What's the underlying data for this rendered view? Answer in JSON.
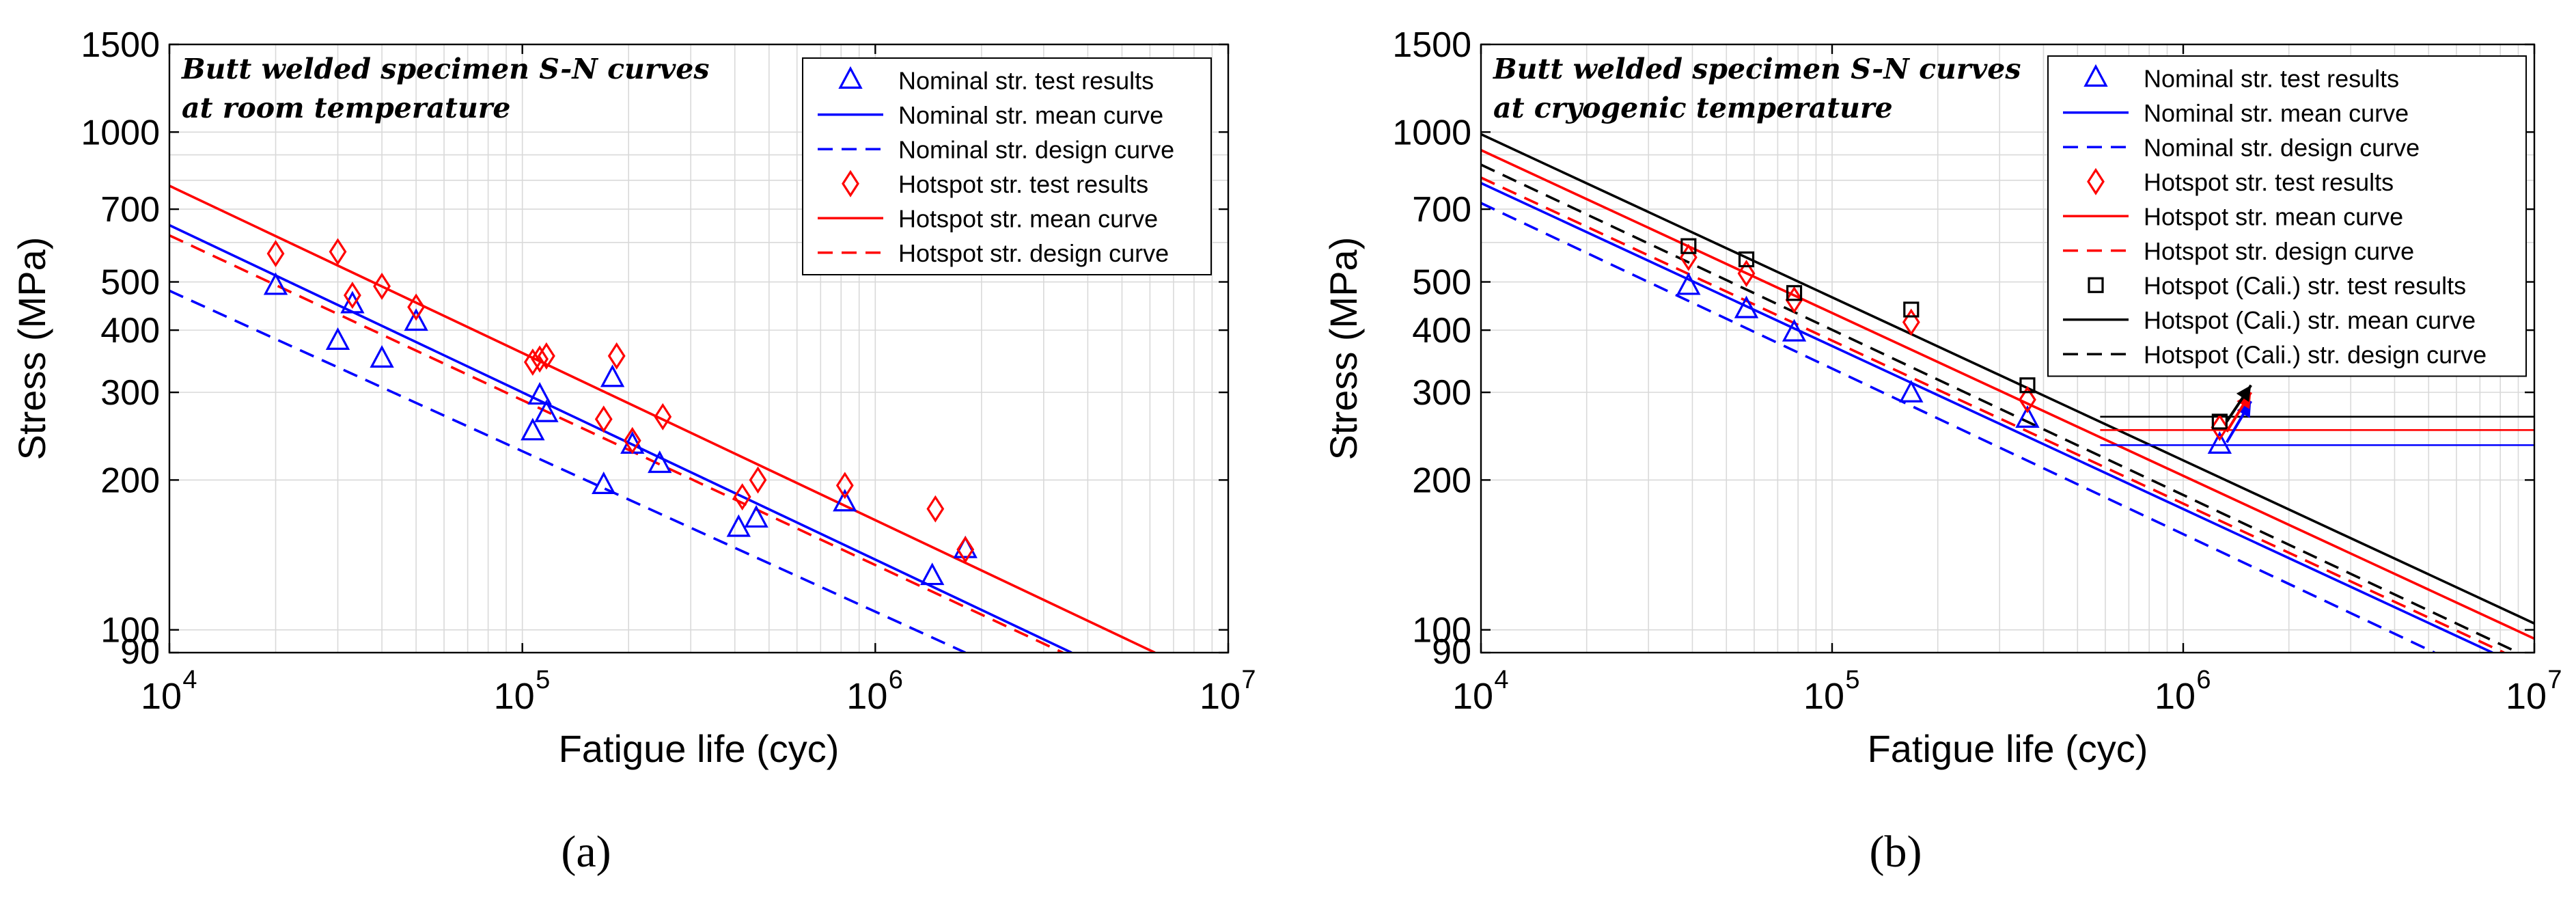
{
  "figure": {
    "panel_labels": [
      "(a)",
      "(b)"
    ]
  },
  "colors": {
    "nominal": "#0000ff",
    "hotspot": "#ff0000",
    "cali": "#000000",
    "grid": "#d9d9d9",
    "axis": "#000000"
  },
  "chart_data": [
    {
      "type": "scatter",
      "panel": "(a)",
      "xscale": "log",
      "yscale": "log",
      "xlim": [
        10000,
        10000000
      ],
      "ylim": [
        90,
        1500
      ],
      "xlabel": "Fatigue life (cyc)",
      "ylabel": "Stress (MPa)",
      "xticks": [
        {
          "value": 10000,
          "base": "10",
          "exp": "4"
        },
        {
          "value": 100000,
          "base": "10",
          "exp": "5"
        },
        {
          "value": 1000000,
          "base": "10",
          "exp": "6"
        },
        {
          "value": 10000000,
          "base": "10",
          "exp": "7"
        }
      ],
      "yticks": [
        {
          "value": 90,
          "label": "90"
        },
        {
          "value": 100,
          "label": "100"
        },
        {
          "value": 200,
          "label": "200"
        },
        {
          "value": 300,
          "label": "300"
        },
        {
          "value": 400,
          "label": "400"
        },
        {
          "value": 500,
          "label": "500"
        },
        {
          "value": 700,
          "label": "700"
        },
        {
          "value": 1000,
          "label": "1000"
        },
        {
          "value": 1500,
          "label": "1500"
        }
      ],
      "annotation": [
        "Butt welded specimen S-N curves",
        "at room temperature"
      ],
      "legend_position": "top-right",
      "series": [
        {
          "name": "Nominal str. test results",
          "kind": "points",
          "marker": "triangle",
          "color": "nominal",
          "points": [
            [
              20000,
              490
            ],
            [
              30000,
              380
            ],
            [
              33000,
              450
            ],
            [
              40000,
              350
            ],
            [
              50000,
              415
            ],
            [
              107000,
              250
            ],
            [
              112000,
              295
            ],
            [
              117000,
              272
            ],
            [
              180000,
              320
            ],
            [
              170000,
              195
            ],
            [
              205000,
              235
            ],
            [
              245000,
              215
            ],
            [
              410000,
              160
            ],
            [
              460000,
              167
            ],
            [
              820000,
              180
            ],
            [
              1450000,
              128
            ],
            [
              1800000,
              145
            ]
          ]
        },
        {
          "name": "Nominal str. mean curve",
          "kind": "line",
          "dash": "solid",
          "color": "nominal",
          "points": [
            [
              10000,
              650
            ],
            [
              3600000,
              90
            ]
          ]
        },
        {
          "name": "Nominal str. design curve",
          "kind": "line",
          "dash": "dashed",
          "color": "nominal",
          "points": [
            [
              10000,
              480
            ],
            [
              1800000,
              90
            ]
          ]
        },
        {
          "name": "Hotspot str. test results",
          "kind": "points",
          "marker": "diamond",
          "color": "hotspot",
          "points": [
            [
              20000,
              570
            ],
            [
              30000,
              575
            ],
            [
              33000,
              470
            ],
            [
              40000,
              490
            ],
            [
              50000,
              445
            ],
            [
              107000,
              345
            ],
            [
              112000,
              350
            ],
            [
              117000,
              355
            ],
            [
              170000,
              265
            ],
            [
              185000,
              355
            ],
            [
              205000,
              240
            ],
            [
              250000,
              268
            ],
            [
              420000,
              185
            ],
            [
              465000,
              200
            ],
            [
              820000,
              195
            ],
            [
              1480000,
              175
            ],
            [
              1800000,
              145
            ]
          ]
        },
        {
          "name": "Hotspot str. mean curve",
          "kind": "line",
          "dash": "solid",
          "color": "hotspot",
          "points": [
            [
              10000,
              780
            ],
            [
              6200000,
              90
            ]
          ]
        },
        {
          "name": "Hotspot str. design curve",
          "kind": "line",
          "dash": "dashed",
          "color": "hotspot",
          "points": [
            [
              10000,
              620
            ],
            [
              3400000,
              90
            ]
          ]
        }
      ]
    },
    {
      "type": "scatter",
      "panel": "(b)",
      "xscale": "log",
      "yscale": "log",
      "xlim": [
        10000,
        10000000
      ],
      "ylim": [
        90,
        1500
      ],
      "xlabel": "Fatigue life (cyc)",
      "ylabel": "Stress (MPa)",
      "xticks": [
        {
          "value": 10000,
          "base": "10",
          "exp": "4"
        },
        {
          "value": 100000,
          "base": "10",
          "exp": "5"
        },
        {
          "value": 1000000,
          "base": "10",
          "exp": "6"
        },
        {
          "value": 10000000,
          "base": "10",
          "exp": "7"
        }
      ],
      "yticks": [
        {
          "value": 90,
          "label": "90"
        },
        {
          "value": 100,
          "label": "100"
        },
        {
          "value": 200,
          "label": "200"
        },
        {
          "value": 300,
          "label": "300"
        },
        {
          "value": 400,
          "label": "400"
        },
        {
          "value": 500,
          "label": "500"
        },
        {
          "value": 700,
          "label": "700"
        },
        {
          "value": 1000,
          "label": "1000"
        },
        {
          "value": 1500,
          "label": "1500"
        }
      ],
      "annotation": [
        "Butt welded specimen S-N curves",
        "at cryogenic temperature"
      ],
      "legend_position": "top-right",
      "series": [
        {
          "name": "Nominal str. test results",
          "kind": "points",
          "marker": "triangle",
          "color": "nominal",
          "points": [
            [
              39000,
              490
            ],
            [
              57000,
              440
            ],
            [
              78000,
              395
            ],
            [
              168000,
              298
            ],
            [
              360000,
              265
            ],
            [
              1270000,
              235
            ]
          ]
        },
        {
          "name": "Nominal str. mean curve",
          "kind": "line",
          "dash": "solid",
          "color": "nominal",
          "points": [
            [
              10000,
              790
            ],
            [
              7600000,
              90
            ]
          ]
        },
        {
          "name": "Nominal str. design curve",
          "kind": "line",
          "dash": "dashed",
          "color": "nominal",
          "points": [
            [
              10000,
              720
            ],
            [
              5200000,
              90
            ]
          ]
        },
        {
          "name": "Hotspot str. test results",
          "kind": "points",
          "marker": "diamond",
          "color": "hotspot",
          "points": [
            [
              39000,
              560
            ],
            [
              57000,
              520
            ],
            [
              78000,
              460
            ],
            [
              168000,
              415
            ],
            [
              360000,
              290
            ],
            [
              1270000,
              255
            ]
          ]
        },
        {
          "name": "Hotspot str. mean curve",
          "kind": "line",
          "dash": "solid",
          "color": "hotspot",
          "points": [
            [
              10000,
              920
            ],
            [
              10000000,
              96
            ]
          ]
        },
        {
          "name": "Hotspot str. design curve",
          "kind": "line",
          "dash": "dashed",
          "color": "hotspot",
          "points": [
            [
              10000,
              810
            ],
            [
              8200000,
              90
            ]
          ]
        },
        {
          "name": "Hotspot (Cali.) str. test results",
          "kind": "points",
          "marker": "square",
          "color": "cali",
          "points": [
            [
              39000,
              590
            ],
            [
              57000,
              555
            ],
            [
              78000,
              475
            ],
            [
              168000,
              440
            ],
            [
              360000,
              310
            ],
            [
              1270000,
              262
            ]
          ]
        },
        {
          "name": "Hotspot (Cali.) str. mean curve",
          "kind": "line",
          "dash": "solid",
          "color": "cali",
          "points": [
            [
              10000,
              990
            ],
            [
              10000000,
              103
            ]
          ]
        },
        {
          "name": "Hotspot (Cali.) str. design curve",
          "kind": "line",
          "dash": "dashed",
          "color": "cali",
          "points": [
            [
              10000,
              860
            ],
            [
              9000000,
              90
            ]
          ]
        }
      ],
      "runout": {
        "start_x": 580000,
        "levels": [
          {
            "color": "nominal",
            "y": 235
          },
          {
            "color": "hotspot",
            "y": 252
          },
          {
            "color": "cali",
            "y": 268
          }
        ],
        "arrows": [
          {
            "color": "nominal",
            "from": [
              1330000,
              238
            ],
            "to": [
              1560000,
              288
            ]
          },
          {
            "color": "hotspot",
            "from": [
              1330000,
              250
            ],
            "to": [
              1560000,
              300
            ]
          },
          {
            "color": "cali",
            "from": [
              1330000,
              262
            ],
            "to": [
              1560000,
              310
            ]
          }
        ]
      }
    }
  ]
}
